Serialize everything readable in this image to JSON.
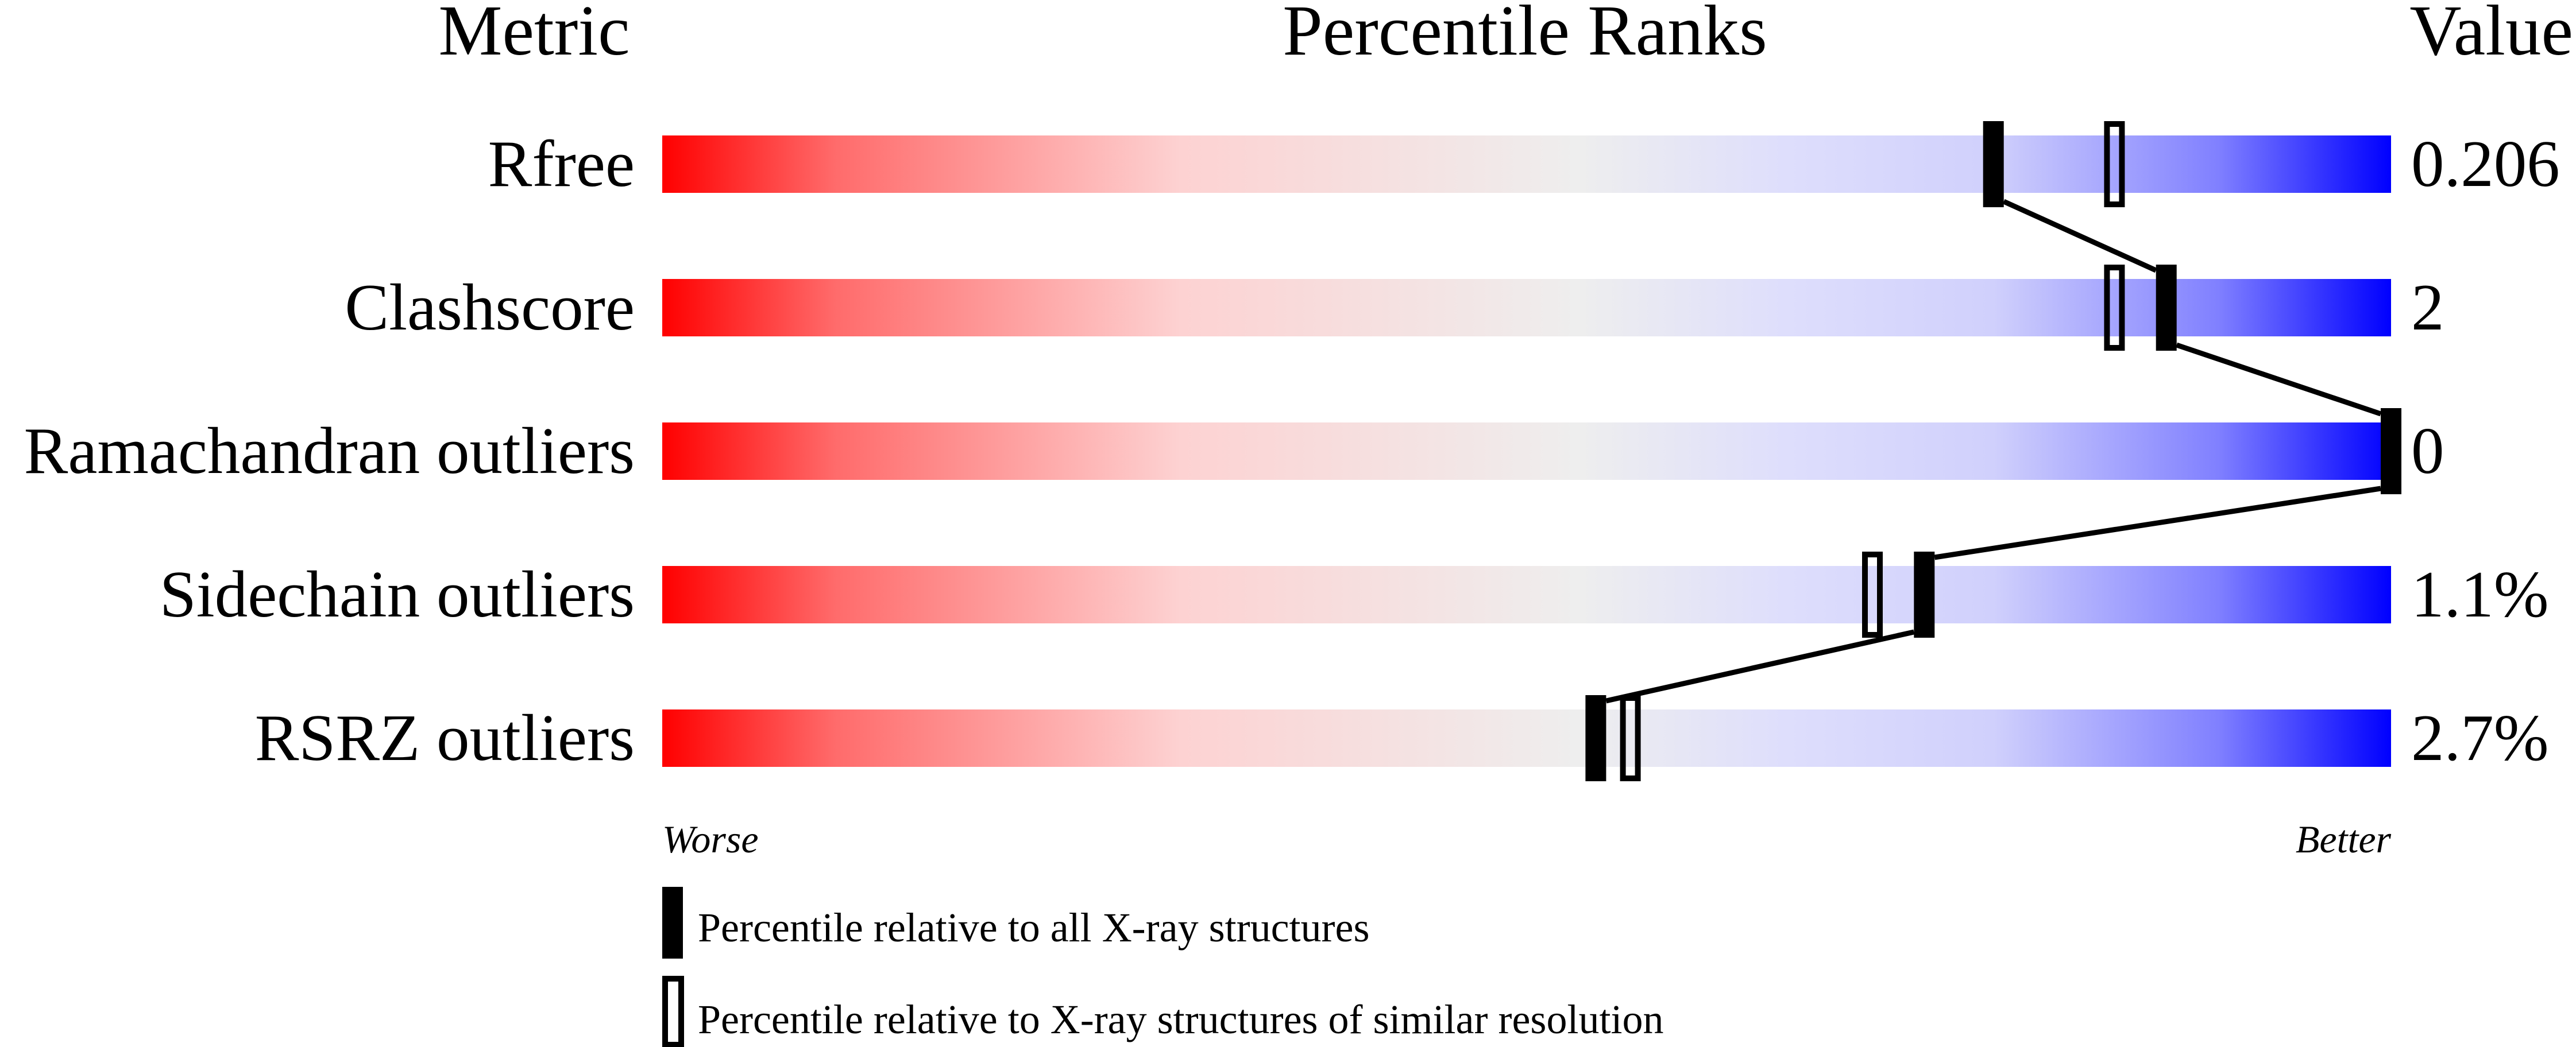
{
  "chart_data": {
    "type": "bar",
    "headers": {
      "metric": "Metric",
      "percentile": "Percentile Ranks",
      "value": "Value"
    },
    "xlim": [
      0,
      100
    ],
    "axis_labels": {
      "left": "Worse",
      "right": "Better"
    },
    "metrics": [
      {
        "name": "Rfree",
        "value": "0.206",
        "percentile_all": 77,
        "percentile_similar": 84
      },
      {
        "name": "Clashscore",
        "value": "2",
        "percentile_all": 87,
        "percentile_similar": 84
      },
      {
        "name": "Ramachandran outliers",
        "value": "0",
        "percentile_all": 100,
        "percentile_similar": 100
      },
      {
        "name": "Sidechain outliers",
        "value": "1.1%",
        "percentile_all": 73,
        "percentile_similar": 70
      },
      {
        "name": "RSRZ outliers",
        "value": "2.7%",
        "percentile_all": 54,
        "percentile_similar": 56
      }
    ],
    "legend": [
      {
        "marker": "filled",
        "label": "Percentile relative to all X-ray structures"
      },
      {
        "marker": "open",
        "label": "Percentile relative to X-ray structures of similar resolution"
      }
    ],
    "colors": {
      "worse": "#ff0000",
      "middle": "#eeeeee",
      "better": "#0000ff",
      "marker": "#000000"
    }
  }
}
